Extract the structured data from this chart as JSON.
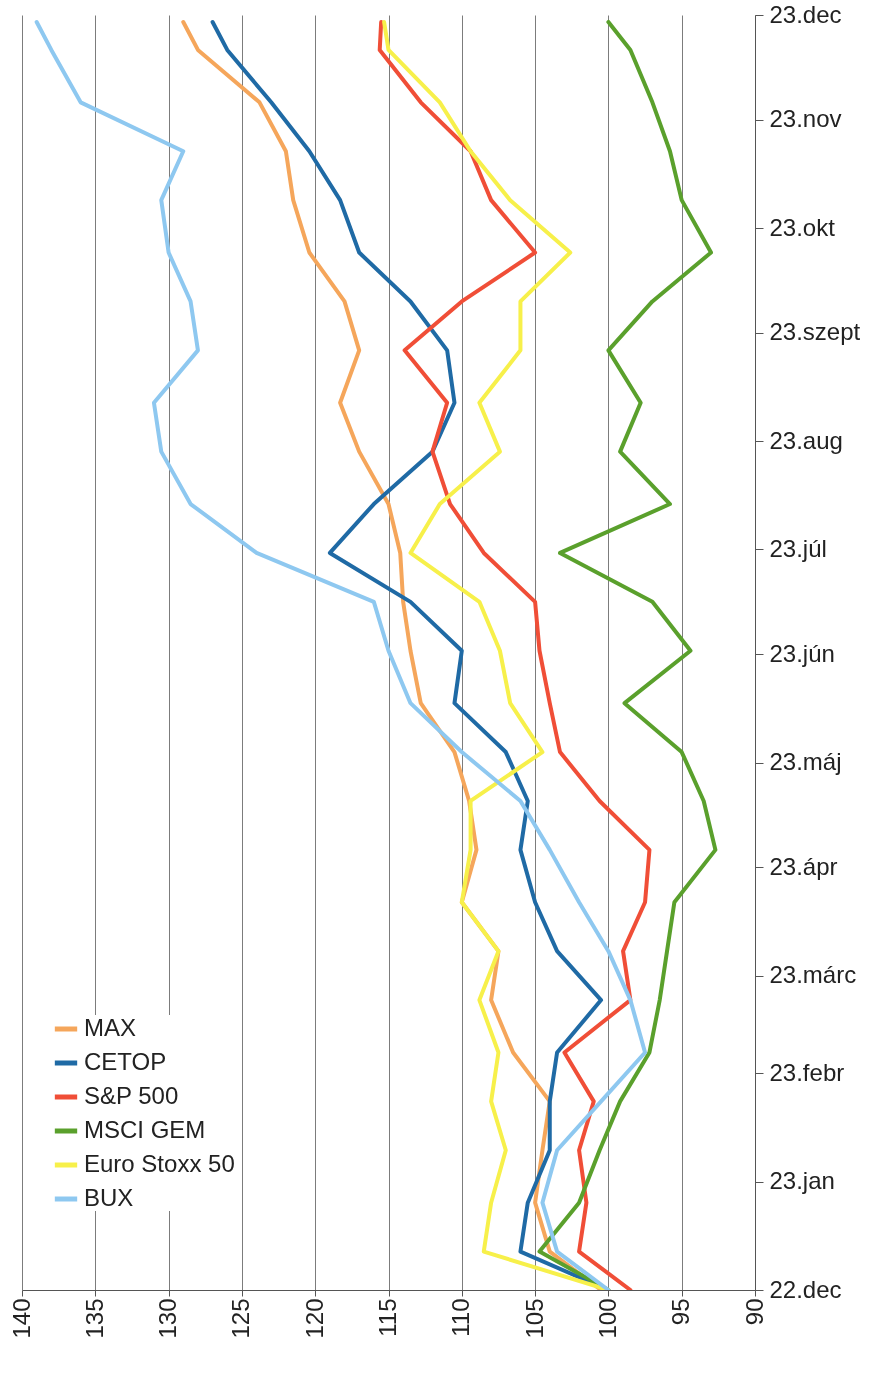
{
  "chart_data": {
    "type": "line",
    "orientation": "horizontal",
    "x": [
      "2022-12-28",
      "2023-01-08",
      "2023-01-22",
      "2023-02-06",
      "2023-02-20",
      "2023-03-06",
      "2023-03-21",
      "2023-04-04",
      "2023-04-18",
      "2023-05-03",
      "2023-05-17",
      "2023-05-31",
      "2023-06-14",
      "2023-06-29",
      "2023-07-13",
      "2023-07-27",
      "2023-08-10",
      "2023-08-25",
      "2023-09-08",
      "2023-09-23",
      "2023-10-07",
      "2023-10-21",
      "2023-11-05",
      "2023-11-19",
      "2023-12-03",
      "2023-12-18",
      "2023-12-26"
    ],
    "series": [
      {
        "name": "MAX",
        "color": "#f5a65b",
        "values": [
          100.5,
          104,
          105,
          104.5,
          104,
          106.5,
          108,
          107.5,
          110,
          109,
          109.5,
          110.5,
          112.8,
          113.5,
          114,
          114.2,
          115,
          117,
          118.3,
          117,
          118,
          120.4,
          121.5,
          122,
          123.8,
          128,
          129
        ]
      },
      {
        "name": "CETOP",
        "color": "#1f6aa5",
        "values": [
          100,
          106,
          105.5,
          104,
          104,
          103.5,
          100.5,
          103.5,
          105,
          106,
          105.5,
          107,
          110.5,
          110,
          113.5,
          119,
          116,
          112,
          110.5,
          111,
          113.5,
          117,
          118.3,
          120.4,
          123,
          126,
          127
        ]
      },
      {
        "name": "S&P 500",
        "color": "#f04e37",
        "values": [
          98.5,
          102,
          101.5,
          102,
          101,
          103,
          98.5,
          99,
          97.5,
          97.2,
          100.6,
          103.3,
          104,
          104.7,
          105,
          108.5,
          110.8,
          112,
          111,
          113.9,
          110,
          105,
          108,
          109.4,
          112.8,
          115.6,
          115.5
        ]
      },
      {
        "name": "MSCI GEM",
        "color": "#5aa02c",
        "values": [
          100,
          104.7,
          102,
          100.6,
          99.2,
          97.2,
          96.5,
          96,
          95.5,
          92.7,
          93.5,
          95,
          98.9,
          94.4,
          97,
          103.3,
          95.8,
          99.2,
          97.8,
          100,
          97,
          93,
          95,
          95.8,
          97,
          98.5,
          100
        ]
      },
      {
        "name": "Euro Stoxx 50",
        "color": "#f7f04a",
        "values": [
          100,
          108.5,
          108,
          107,
          108,
          107.5,
          108.8,
          107.5,
          110,
          109.4,
          109.4,
          104.5,
          106.7,
          107.4,
          108.8,
          113.5,
          111.5,
          107.4,
          108.8,
          106,
          106,
          102.6,
          106.7,
          109.4,
          111.5,
          115,
          115.3
        ]
      },
      {
        "name": "BUX",
        "color": "#8ec8f0",
        "values": [
          100,
          103.5,
          104.5,
          103.5,
          100.5,
          97.5,
          98.5,
          100,
          102,
          104,
          106,
          110,
          113.5,
          115,
          116,
          124,
          128.5,
          130.5,
          131,
          128,
          128.5,
          130,
          130.5,
          129,
          136,
          138,
          139
        ]
      }
    ],
    "ylim": [
      "2022-12-28",
      "2023-12-28"
    ],
    "yticks": [
      {
        "value": "2022-12-28",
        "label": "22.dec"
      },
      {
        "value": "2023-01-28",
        "label": "23.jan"
      },
      {
        "value": "2023-02-28",
        "label": "23.febr"
      },
      {
        "value": "2023-03-28",
        "label": "23.márc"
      },
      {
        "value": "2023-04-28",
        "label": "23.ápr"
      },
      {
        "value": "2023-05-28",
        "label": "23.máj"
      },
      {
        "value": "2023-06-28",
        "label": "23.jún"
      },
      {
        "value": "2023-07-28",
        "label": "23.júl"
      },
      {
        "value": "2023-08-28",
        "label": "23.aug"
      },
      {
        "value": "2023-09-28",
        "label": "23.szept"
      },
      {
        "value": "2023-10-28",
        "label": "23.okt"
      },
      {
        "value": "2023-11-28",
        "label": "23.nov"
      },
      {
        "value": "2023-12-28",
        "label": "23.dec"
      }
    ],
    "xlim": [
      140,
      90
    ],
    "xticks": [
      140,
      135,
      130,
      125,
      120,
      115,
      110,
      105,
      100,
      95,
      90
    ],
    "grid": "x",
    "legend": "left"
  }
}
